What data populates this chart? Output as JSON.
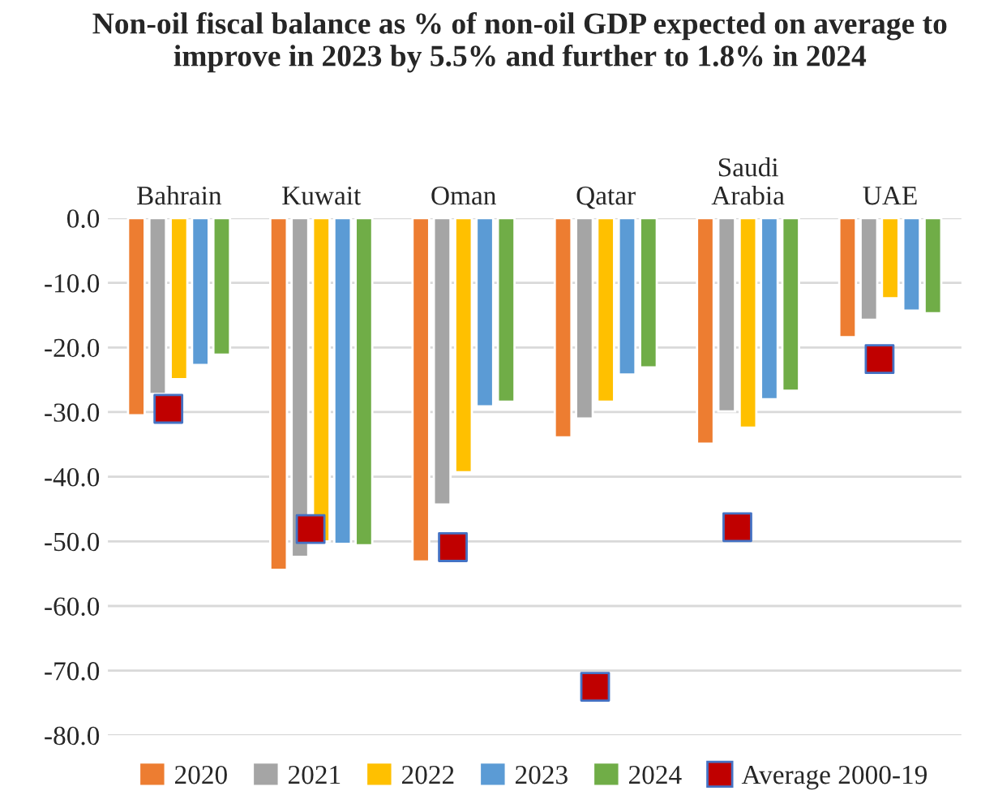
{
  "chart_data": {
    "type": "bar",
    "title": "Non-oil fiscal balance as % of non-oil GDP expected on average to improve in 2023 by 5.5% and further to 1.8% in 2024",
    "categories": [
      "Bahrain",
      "Kuwait",
      "Oman",
      "Qatar",
      "Saudi\nArabia",
      "UAE"
    ],
    "series": [
      {
        "name": "2020",
        "color": "#ed7d31",
        "values": [
          -30.5,
          -54.4,
          -53.1,
          -33.9,
          -34.9,
          -18.4
        ]
      },
      {
        "name": "2021",
        "color": "#a5a5a5",
        "values": [
          -27.2,
          -52.4,
          -44.3,
          -31.0,
          -29.9,
          -15.7
        ]
      },
      {
        "name": "2022",
        "color": "#ffc000",
        "values": [
          -24.9,
          -50.0,
          -39.3,
          -28.4,
          -32.4,
          -12.4
        ]
      },
      {
        "name": "2023",
        "color": "#5b9bd5",
        "values": [
          -22.7,
          -50.4,
          -29.1,
          -24.2,
          -28.0,
          -14.3
        ]
      },
      {
        "name": "2024",
        "color": "#70ad47",
        "values": [
          -21.1,
          -50.6,
          -28.4,
          -23.1,
          -26.7,
          -14.7
        ]
      },
      {
        "name": "Average 2000-19",
        "type": "scatter",
        "marker": "square",
        "color": "#c00000",
        "values": [
          -29.5,
          -48.1,
          -50.9,
          -72.5,
          -47.8,
          -21.8
        ]
      }
    ],
    "ylim": [
      -80,
      0
    ],
    "yticks": [
      {
        "value": -80,
        "label": "-80.0"
      },
      {
        "value": -70,
        "label": "-70.0"
      },
      {
        "value": -60,
        "label": "-60.0"
      },
      {
        "value": -50,
        "label": "-50.0"
      },
      {
        "value": -40,
        "label": "-40.0"
      },
      {
        "value": -30,
        "label": "-30.0"
      },
      {
        "value": -20,
        "label": "-20.0"
      },
      {
        "value": -10,
        "label": "-10.0"
      },
      {
        "value": 0,
        "label": "0.0"
      }
    ],
    "grid": "y",
    "legend": "bottom"
  }
}
